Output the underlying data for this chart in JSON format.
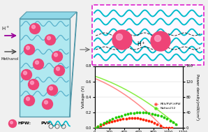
{
  "xlabel": "Current density(mA/cm²)",
  "ylabel_left": "Voltage (V)",
  "ylabel_right": "Power density(mW/cm²)",
  "xlim": [
    0,
    1200
  ],
  "ylim_v": [
    0,
    0.8
  ],
  "ylim_p": [
    0,
    160
  ],
  "xticks": [
    0,
    200,
    400,
    600,
    800,
    1000,
    1200
  ],
  "yticks_v": [
    0.0,
    0.2,
    0.4,
    0.6,
    0.8
  ],
  "yticks_p": [
    0,
    40,
    80,
    120,
    160
  ],
  "legend": [
    "PES/PVP-HPW",
    "Nafion212"
  ],
  "color_red": "#ff2200",
  "color_green": "#22cc00",
  "color_pink": "#ff8888",
  "color_lightgreen": "#88ee44",
  "membrane_color": "#b0e8f0",
  "border_magenta": "#dd22cc",
  "inset_cyan": "#00bbcc",
  "fig_bg": "#e8e8e8"
}
